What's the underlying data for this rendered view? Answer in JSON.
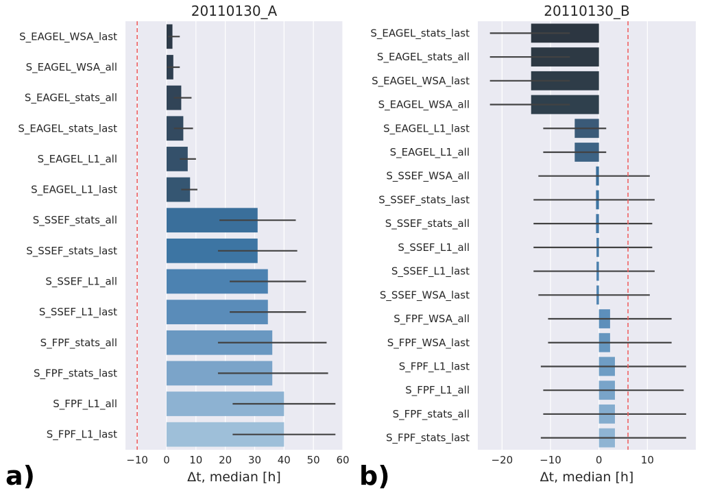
{
  "figure": {
    "panel_letters": [
      "a)",
      "b)"
    ],
    "colors": {
      "background": "#eaeaf2",
      "grid": "#ffffff",
      "errorbar": "#424242",
      "reference_line": "#f06060"
    }
  },
  "chart_data": [
    {
      "type": "bar",
      "orientation": "horizontal",
      "title": "20110130_A",
      "xlabel": "Δt, median [h]",
      "ylabel": "",
      "xlim": [
        -14,
        60
      ],
      "xticks": [
        -10,
        0,
        10,
        20,
        30,
        40,
        50,
        60
      ],
      "grid": true,
      "reference_line_x": -10,
      "categories": [
        "S_EAGEL_WSA_last",
        "S_EAGEL_WSA_all",
        "S_EAGEL_stats_all",
        "S_EAGEL_stats_last",
        "S_EAGEL_L1_all",
        "S_EAGEL_L1_last",
        "S_SSEF_stats_all",
        "S_SSEF_stats_last",
        "S_SSEF_L1_all",
        "S_SSEF_L1_last",
        "S_FPF_stats_all",
        "S_FPF_stats_last",
        "S_FPF_L1_all",
        "S_FPF_L1_last"
      ],
      "values": [
        2,
        2.3,
        5,
        5.7,
        7.2,
        8,
        31,
        31,
        34.5,
        34.5,
        36,
        36,
        40,
        40
      ],
      "error_low": [
        0.5,
        0.2,
        2.5,
        2.5,
        4.5,
        5,
        18,
        17.5,
        21.5,
        21.5,
        17.5,
        17.5,
        22.5,
        22.5
      ],
      "error_high": [
        4.5,
        4.5,
        8.5,
        9,
        10,
        10.5,
        44,
        44.5,
        47.5,
        47.5,
        54.5,
        55,
        57.5,
        57.5
      ],
      "bar_colors": [
        "#2d3a48",
        "#2f3f50",
        "#314457",
        "#334a60",
        "#34506a",
        "#355672",
        "#3a6f9b",
        "#3d75a3",
        "#4c82b1",
        "#5a8cb9",
        "#6a98c1",
        "#7ba4c9",
        "#8db2d2",
        "#9ebfd9"
      ]
    },
    {
      "type": "bar",
      "orientation": "horizontal",
      "title": "20110130_B",
      "xlabel": "Δt, median [h]",
      "ylabel": "",
      "xlim": [
        -25,
        20
      ],
      "xticks": [
        -20,
        -10,
        0,
        10
      ],
      "grid": true,
      "reference_line_x": 6,
      "categories": [
        "S_EAGEL_stats_last",
        "S_EAGEL_stats_all",
        "S_EAGEL_WSA_last",
        "S_EAGEL_WSA_all",
        "S_EAGEL_L1_last",
        "S_EAGEL_L1_all",
        "S_SSEF_WSA_all",
        "S_SSEF_stats_last",
        "S_SSEF_stats_all",
        "S_SSEF_L1_all",
        "S_SSEF_L1_last",
        "S_SSEF_WSA_last",
        "S_FPF_WSA_all",
        "S_FPF_WSA_last",
        "S_FPF_L1_last",
        "S_FPF_L1_all",
        "S_FPF_stats_all",
        "S_FPF_stats_last"
      ],
      "values": [
        -14,
        -14,
        -14,
        -14,
        -5,
        -5,
        -0.6,
        -0.6,
        -0.6,
        -0.5,
        -0.5,
        -0.5,
        2.3,
        2.3,
        3.3,
        3.3,
        3.3,
        3.3
      ],
      "error_low": [
        -22.5,
        -22.5,
        -22.5,
        -22.5,
        -11.5,
        -11.5,
        -12.5,
        -13.5,
        -13.5,
        -13.5,
        -13.5,
        -12.5,
        -10.5,
        -10.5,
        -12,
        -11.5,
        -11.5,
        -12
      ],
      "error_high": [
        -6,
        -6,
        -6,
        -6,
        1.5,
        1.5,
        10.5,
        11.5,
        11,
        11,
        11.5,
        10.5,
        15,
        15,
        18,
        17.5,
        18,
        18
      ],
      "bar_colors": [
        "#2c3641",
        "#2d3944",
        "#2e3c48",
        "#2f404d",
        "#3a5a78",
        "#3d6384",
        "#3a6f9b",
        "#3e75a2",
        "#4378a6",
        "#477ca9",
        "#4b80ad",
        "#4f84b1",
        "#5d8fbb",
        "#6596bf",
        "#6f9dc4",
        "#79a4c9",
        "#84acce",
        "#8fb4d3"
      ]
    }
  ]
}
